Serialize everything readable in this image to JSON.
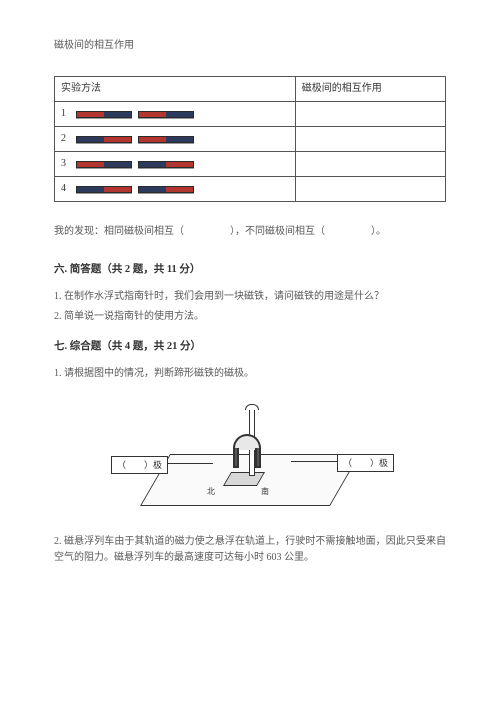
{
  "title": "磁极间的相互作用",
  "table": {
    "h1": "实验方法",
    "h2": "磁极间的相互作用",
    "rows": [
      {
        "n": "1",
        "left": [
          "r",
          "b"
        ],
        "right": [
          "r",
          "b"
        ]
      },
      {
        "n": "2",
        "left": [
          "b",
          "r"
        ],
        "right": [
          "r",
          "b"
        ]
      },
      {
        "n": "3",
        "left": [
          "r",
          "b"
        ],
        "right": [
          "b",
          "r"
        ]
      },
      {
        "n": "4",
        "left": [
          "b",
          "r"
        ],
        "right": [
          "b",
          "r"
        ]
      }
    ]
  },
  "finding": {
    "prefix": "我的发现：相同磁极间相互（",
    "mid": "），不同磁极间相互（",
    "suffix": "）。"
  },
  "sec6": {
    "head": "六. 简答题（共 2 题，共 11 分）",
    "q1": "1. 在制作水浮式指南针时，我们会用到一块磁铁，请问磁铁的用途是什么？",
    "q2": "2. 简单说一说指南针的使用方法。"
  },
  "sec7": {
    "head": "七. 综合题（共 4 题，共 21 分）",
    "q1": "1. 请根据图中的情况，判断蹄形磁铁的磁极。",
    "label_left": "（　　）极",
    "label_right": "（　　）极",
    "inlabel1": "北",
    "inlabel2": "南",
    "q2": "2. 磁悬浮列车由于其轨道的磁力使之悬浮在轨道上，行驶时不需接触地面，因此只受来自空气的阻力。磁悬浮列车的最高速度可达每小时 603 公里。"
  },
  "colors": {
    "bar_red": "#b2362f",
    "bar_blue": "#2c3a5e",
    "text": "#595959",
    "border": "#555555",
    "bg": "#ffffff"
  }
}
